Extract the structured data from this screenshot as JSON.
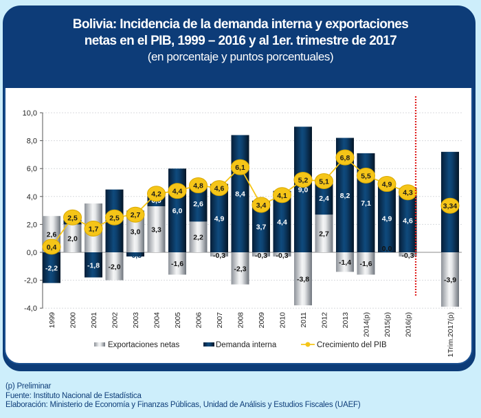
{
  "title": {
    "line1": "Bolivia: Incidencia de la demanda interna y exportaciones",
    "line2": "netas en el PIB, 1999 – 2016 y al 1er. trimestre de 2017",
    "line3": "(en porcentaje y puntos porcentuales)"
  },
  "chart_data": {
    "type": "bar",
    "stacked": true,
    "title": "Bolivia: Incidencia de la demanda interna y exportaciones netas en el PIB, 1999 – 2016 y al 1er. trimestre de 2017",
    "subtitle": "(en porcentaje y puntos porcentuales)",
    "xlabel": "",
    "ylabel": "",
    "ylim": [
      -4,
      10
    ],
    "yticks": [
      -4,
      -2,
      0,
      2,
      4,
      6,
      8,
      10
    ],
    "ytick_labels": [
      "-4,0",
      "-2,0",
      "0,0",
      "2,0",
      "4,0",
      "6,0",
      "8,0",
      "10,0"
    ],
    "grid": true,
    "legend_position": "bottom",
    "categories": [
      "1999",
      "2000",
      "2001",
      "2002",
      "2003",
      "2004",
      "2005",
      "2006",
      "2007",
      "2008",
      "2009",
      "2010",
      "2011",
      "2012",
      "2013",
      "2014(p)",
      "2015(p)",
      "2016(p)",
      "1Trim.2017(p)"
    ],
    "series": [
      {
        "name": "Exportaciones netas",
        "type": "bar",
        "color": "#c0c4c8",
        "values": [
          2.6,
          2.0,
          3.5,
          -2.0,
          3.0,
          3.3,
          -1.6,
          2.2,
          -0.3,
          -2.3,
          -0.3,
          -0.3,
          -3.8,
          2.7,
          -1.4,
          -1.6,
          0.0,
          -0.3,
          -3.9
        ],
        "labels": [
          "2,6",
          "2,0",
          "3,5",
          "-2,0",
          "3,0",
          "3,3",
          "-1,6",
          "2,2",
          "-0,3",
          "-2,3",
          "-0,3",
          "-0,3",
          "-3,8",
          "2,7",
          "-1,4",
          "-1,6",
          "0,0",
          "-0,3",
          "-3,9"
        ]
      },
      {
        "name": "Demanda interna",
        "type": "bar",
        "color": "#0d3c66",
        "values": [
          -2.2,
          0.5,
          -1.8,
          4.5,
          -0.3,
          0.9,
          6.0,
          2.6,
          4.9,
          8.4,
          3.7,
          4.4,
          9.0,
          2.4,
          8.2,
          7.1,
          4.9,
          4.6,
          7.2
        ],
        "labels": [
          "-2,2",
          "0,5",
          "-1,8",
          "4,5",
          "-0,3",
          "0,9",
          "6,0",
          "2,6",
          "4,9",
          "8,4",
          "3,7",
          "4,4",
          "9,0",
          "2,4",
          "8,2",
          "7,1",
          "4,9",
          "4,6",
          "7,2"
        ]
      },
      {
        "name": "Crecimiento del PIB",
        "type": "line",
        "color": "#f5c518",
        "values": [
          0.4,
          2.5,
          1.7,
          2.5,
          2.7,
          4.2,
          4.4,
          4.8,
          4.6,
          6.1,
          3.4,
          4.1,
          5.2,
          5.1,
          6.8,
          5.5,
          4.9,
          4.3,
          3.34
        ],
        "labels": [
          "0,4",
          "2,5",
          "1,7",
          "2,5",
          "2,7",
          "4,2",
          "4,4",
          "4,8",
          "4,6",
          "6,1",
          "3,4",
          "4,1",
          "5,2",
          "5,1",
          "6,8",
          "5,5",
          "4,9",
          "4,3",
          "3,34"
        ]
      }
    ],
    "annotations": [
      {
        "type": "vertical-dotted-line",
        "between": [
          "2016(p)",
          "1Trim.2017(p)"
        ],
        "color": "#e0201f"
      }
    ]
  },
  "legend": {
    "items": [
      "Exportaciones netas",
      "Demanda interna",
      "Crecimiento del PIB"
    ]
  },
  "footer": {
    "note": "(p) Preliminar",
    "source": "Fuente: Instituto Nacional de Estadística",
    "author": "Elaboración: Ministerio de Economía y Finanzas Públicas, Unidad de Análisis y Estudios Fiscales (UAEF)"
  }
}
